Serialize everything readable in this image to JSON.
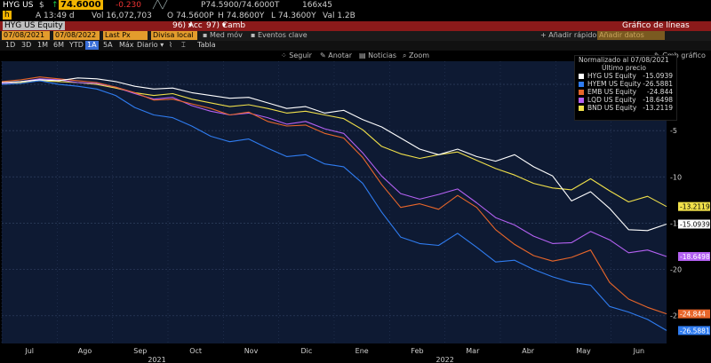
{
  "quote": {
    "ticker": "HYG US",
    "currency": "$",
    "last": "74.6000",
    "change": "-0.230",
    "bidask": "P74.5900/74.6000T",
    "size": "166x45",
    "time_label": "A 13:49 d",
    "volume": "Vol 16,072,703",
    "open": "O 74.5600P",
    "high": "H 74.8600Y",
    "low": "L 74.3600Y",
    "val": "Val 1.2B"
  },
  "titlebar": {
    "security": "HYG US Equity",
    "actions_label": "Acc",
    "change_label": "Camb",
    "chart_type": "Gráfico de líneas"
  },
  "inputs": {
    "start_date": "07/08/2021",
    "end_date": "07/08/2022",
    "field": "Last Px",
    "currency": "Divisa local",
    "moving_avg": "Med móv",
    "key_events": "Eventos clave",
    "quick_add": "Añadir rápido",
    "add_data": "Añadir datos"
  },
  "ranges": {
    "items": [
      "1D",
      "3D",
      "1M",
      "6M",
      "YTD",
      "1A",
      "5A",
      "Máx"
    ],
    "active": "1A",
    "frequency": "Diario",
    "table_label": "Tabla"
  },
  "toolbar": {
    "follow": "Seguir",
    "annotate": "Anotar",
    "news": "Noticias",
    "zoom": "Zoom",
    "edit_chart": "Cmb gráfico"
  },
  "colors": {
    "background": "#0e1a33",
    "grid": "#2b3a5a",
    "hyg": "#ffffff",
    "hyem": "#2f7cf0",
    "emb": "#e8662a",
    "lqd": "#b461f2",
    "bnd": "#f0e04a"
  },
  "chart_data": {
    "type": "line",
    "legend_title": "Normalizado al 07/08/2021",
    "legend_subtitle": "Último precio",
    "x_tick_labels": [
      "Jul",
      "Ago",
      "Sep",
      "Oct",
      "Nov",
      "Dic",
      "Ene",
      "Feb",
      "Mar",
      "Abr",
      "May",
      "Jun"
    ],
    "year_labels": [
      "2021",
      "2022"
    ],
    "ylim": [
      -28,
      2.5
    ],
    "y_ticks": [
      0,
      -5,
      -10,
      -15,
      -20,
      -25
    ],
    "series": [
      {
        "name": "HYG US Equity",
        "last": "-15.0939",
        "values": [
          0.2,
          0.3,
          0.5,
          0.4,
          0.7,
          0.6,
          0.3,
          -0.2,
          -0.5,
          -0.4,
          -0.9,
          -1.2,
          -1.5,
          -1.4,
          -2.0,
          -2.6,
          -2.4,
          -3.1,
          -2.8,
          -3.8,
          -4.6,
          -5.8,
          -7.0,
          -7.6,
          -7.0,
          -7.8,
          -8.3,
          -7.6,
          -8.9,
          -9.9,
          -12.6,
          -11.6,
          -13.4,
          -15.7,
          -15.8,
          -15.1
        ]
      },
      {
        "name": "HYEM US Equity",
        "last": "-26.5881",
        "values": [
          0.0,
          0.1,
          0.4,
          0.0,
          -0.2,
          -0.5,
          -1.2,
          -2.5,
          -3.3,
          -3.6,
          -4.5,
          -5.6,
          -6.2,
          -5.9,
          -6.9,
          -7.8,
          -7.6,
          -8.6,
          -8.9,
          -10.7,
          -13.8,
          -16.5,
          -17.2,
          -17.4,
          -16.1,
          -17.6,
          -19.2,
          -19.0,
          -20.0,
          -20.8,
          -21.4,
          -21.7,
          -24.0,
          -24.6,
          -25.4,
          -26.6
        ]
      },
      {
        "name": "EMB US Equity",
        "last": "-24.844",
        "values": [
          0.3,
          0.5,
          0.8,
          0.6,
          0.4,
          0.2,
          -0.3,
          -0.9,
          -1.7,
          -1.6,
          -2.1,
          -2.6,
          -3.3,
          -3.0,
          -4.0,
          -4.5,
          -4.4,
          -5.3,
          -5.8,
          -7.9,
          -10.8,
          -13.3,
          -12.9,
          -13.5,
          -12.0,
          -13.3,
          -15.7,
          -17.3,
          -18.5,
          -19.1,
          -18.7,
          -17.9,
          -21.4,
          -23.2,
          -24.1,
          -24.8
        ]
      },
      {
        "name": "LQD US Equity",
        "last": "-18.6498",
        "values": [
          0.1,
          0.3,
          0.6,
          0.5,
          0.2,
          0.1,
          -0.3,
          -1.0,
          -1.6,
          -1.4,
          -2.3,
          -2.9,
          -3.3,
          -3.1,
          -3.6,
          -4.3,
          -4.0,
          -4.8,
          -5.3,
          -7.4,
          -9.9,
          -11.8,
          -12.4,
          -11.9,
          -11.3,
          -12.8,
          -14.4,
          -15.2,
          -16.4,
          -17.2,
          -17.1,
          -15.9,
          -16.8,
          -18.2,
          -17.9,
          -18.6
        ]
      },
      {
        "name": "BND US Equity",
        "last": "-13.2119",
        "values": [
          0.0,
          0.2,
          0.4,
          0.3,
          0.2,
          0.0,
          -0.4,
          -0.9,
          -1.2,
          -1.0,
          -1.6,
          -2.0,
          -2.4,
          -2.2,
          -2.6,
          -3.1,
          -2.9,
          -3.3,
          -3.7,
          -4.9,
          -6.7,
          -7.5,
          -8.0,
          -7.6,
          -7.3,
          -8.2,
          -9.1,
          -9.8,
          -10.7,
          -11.2,
          -11.4,
          -10.2,
          -11.5,
          -12.7,
          -12.1,
          -13.2
        ]
      }
    ]
  }
}
